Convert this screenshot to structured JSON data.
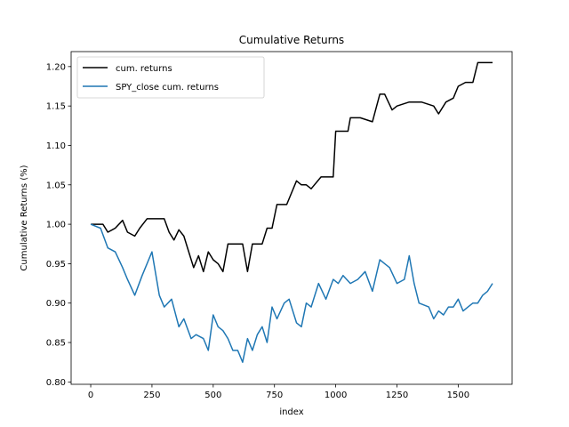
{
  "chart_data": {
    "type": "line",
    "title": "Cumulative Returns",
    "xlabel": "index",
    "ylabel": "Cumulative Returns (%)",
    "xlim": [
      -80,
      1720
    ],
    "ylim": [
      0.797,
      1.219
    ],
    "xticks": [
      0,
      250,
      500,
      750,
      1000,
      1250,
      1500
    ],
    "xtick_labels": [
      "0",
      "250",
      "500",
      "750",
      "1000",
      "1250",
      "1500"
    ],
    "yticks": [
      0.8,
      0.85,
      0.9,
      0.95,
      1.0,
      1.05,
      1.1,
      1.15,
      1.2
    ],
    "ytick_labels": [
      "0.80",
      "0.85",
      "0.90",
      "0.95",
      "1.00",
      "1.05",
      "1.10",
      "1.15",
      "1.20"
    ],
    "grid": false,
    "legend_position": "top-left",
    "series": [
      {
        "name": "cum. returns",
        "color": "#000000",
        "x": [
          0,
          50,
          70,
          100,
          130,
          150,
          180,
          200,
          230,
          250,
          300,
          320,
          340,
          360,
          380,
          400,
          420,
          440,
          460,
          480,
          500,
          520,
          540,
          560,
          580,
          620,
          640,
          660,
          700,
          720,
          740,
          760,
          800,
          840,
          860,
          880,
          900,
          940,
          950,
          990,
          1000,
          1050,
          1060,
          1100,
          1150,
          1180,
          1200,
          1230,
          1250,
          1300,
          1350,
          1400,
          1420,
          1450,
          1480,
          1500,
          1530,
          1560,
          1580,
          1640
        ],
        "y": [
          1.0,
          1.0,
          0.99,
          0.995,
          1.005,
          0.99,
          0.985,
          0.995,
          1.007,
          1.007,
          1.007,
          0.99,
          0.98,
          0.993,
          0.985,
          0.965,
          0.945,
          0.96,
          0.94,
          0.965,
          0.955,
          0.95,
          0.94,
          0.975,
          0.975,
          0.975,
          0.94,
          0.975,
          0.975,
          0.995,
          0.995,
          1.025,
          1.025,
          1.055,
          1.05,
          1.05,
          1.045,
          1.06,
          1.06,
          1.06,
          1.118,
          1.118,
          1.135,
          1.135,
          1.13,
          1.165,
          1.165,
          1.145,
          1.15,
          1.155,
          1.155,
          1.15,
          1.14,
          1.155,
          1.16,
          1.175,
          1.18,
          1.18,
          1.205,
          1.205
        ]
      },
      {
        "name": "SPY_close cum. returns",
        "color": "#1f77b4",
        "x": [
          0,
          40,
          70,
          100,
          130,
          150,
          180,
          210,
          250,
          280,
          300,
          330,
          360,
          380,
          410,
          430,
          460,
          480,
          500,
          520,
          540,
          560,
          580,
          600,
          620,
          640,
          660,
          680,
          700,
          720,
          740,
          760,
          790,
          810,
          840,
          860,
          880,
          900,
          930,
          960,
          990,
          1010,
          1030,
          1060,
          1090,
          1120,
          1150,
          1180,
          1200,
          1220,
          1250,
          1280,
          1300,
          1320,
          1340,
          1380,
          1400,
          1420,
          1440,
          1460,
          1480,
          1500,
          1520,
          1540,
          1560,
          1580,
          1600,
          1620,
          1640
        ],
        "y": [
          1.0,
          0.995,
          0.97,
          0.965,
          0.945,
          0.93,
          0.91,
          0.935,
          0.965,
          0.91,
          0.895,
          0.905,
          0.87,
          0.88,
          0.855,
          0.86,
          0.855,
          0.84,
          0.885,
          0.87,
          0.865,
          0.855,
          0.84,
          0.84,
          0.825,
          0.855,
          0.84,
          0.86,
          0.87,
          0.85,
          0.895,
          0.88,
          0.9,
          0.905,
          0.875,
          0.87,
          0.9,
          0.895,
          0.925,
          0.905,
          0.93,
          0.925,
          0.935,
          0.925,
          0.93,
          0.94,
          0.915,
          0.955,
          0.95,
          0.945,
          0.925,
          0.93,
          0.96,
          0.925,
          0.9,
          0.895,
          0.88,
          0.89,
          0.885,
          0.895,
          0.895,
          0.905,
          0.89,
          0.895,
          0.9,
          0.9,
          0.91,
          0.915,
          0.925
        ]
      }
    ]
  }
}
